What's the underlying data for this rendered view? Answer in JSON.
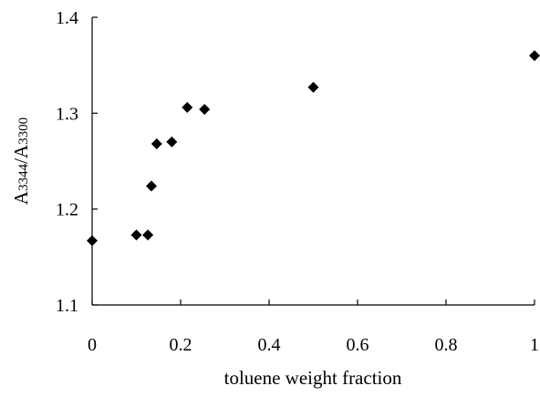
{
  "chart_data": {
    "type": "scatter",
    "title": "",
    "xlabel": "toluene weight fraction",
    "ylabel": {
      "parts": [
        {
          "text": "A",
          "sub": false
        },
        {
          "text": "3344",
          "sub": true
        },
        {
          "text": "/A",
          "sub": false
        },
        {
          "text": "3300",
          "sub": true
        }
      ]
    },
    "xlim": [
      0,
      1
    ],
    "ylim": [
      1.1,
      1.4
    ],
    "xticks": [
      {
        "value": 0,
        "label": "0"
      },
      {
        "value": 0.2,
        "label": "0.2"
      },
      {
        "value": 0.4,
        "label": "0.4"
      },
      {
        "value": 0.6,
        "label": "0.6"
      },
      {
        "value": 0.8,
        "label": "0.8"
      },
      {
        "value": 1,
        "label": "1"
      }
    ],
    "yticks": [
      {
        "value": 1.1,
        "label": "1.1"
      },
      {
        "value": 1.2,
        "label": "1.2"
      },
      {
        "value": 1.3,
        "label": "1.3"
      },
      {
        "value": 1.4,
        "label": "1.4"
      }
    ],
    "grid": false,
    "marker": "diamond",
    "marker_color": "#000000",
    "series": [
      {
        "points": [
          {
            "x": 0.0,
            "y": 1.167
          },
          {
            "x": 0.1,
            "y": 1.173
          },
          {
            "x": 0.126,
            "y": 1.173
          },
          {
            "x": 0.134,
            "y": 1.224
          },
          {
            "x": 0.146,
            "y": 1.268
          },
          {
            "x": 0.18,
            "y": 1.27
          },
          {
            "x": 0.215,
            "y": 1.306
          },
          {
            "x": 0.254,
            "y": 1.304
          },
          {
            "x": 0.5,
            "y": 1.327
          },
          {
            "x": 1.0,
            "y": 1.36
          }
        ]
      }
    ]
  }
}
